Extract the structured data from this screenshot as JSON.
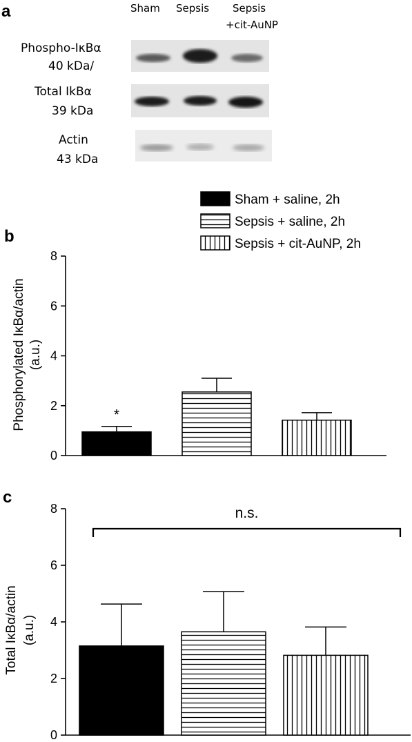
{
  "panel_labels": {
    "a": "a",
    "b": "b",
    "c": "c"
  },
  "blot": {
    "lanes": [
      "Sham",
      "Sepsis",
      "Sepsis",
      "+cit-AuNP"
    ],
    "rows": [
      {
        "label_line1": "Phospho-IκBα",
        "label_line2": "40 kDa/"
      },
      {
        "label_line1": "Total IkBα",
        "label_line2": "39 kDa"
      },
      {
        "label_line1": "Actin",
        "label_line2": "43 kDa"
      }
    ]
  },
  "legend": [
    {
      "label": "Sham + saline, 2h",
      "pattern": "solid"
    },
    {
      "label": "Sepsis + saline, 2h",
      "pattern": "horizontal"
    },
    {
      "label": "Sepsis + cit-AuNP, 2h",
      "pattern": "vertical"
    }
  ],
  "chart_data": [
    {
      "type": "bar",
      "categories": [
        "Sham + saline, 2h",
        "Sepsis + saline, 2h",
        "Sepsis + cit-AuNP, 2h"
      ],
      "values": [
        0.95,
        2.55,
        1.42
      ],
      "errors": [
        0.22,
        0.55,
        0.3
      ],
      "patterns": [
        "solid",
        "horizontal",
        "vertical"
      ],
      "ylabel_line1": "Phosphorylated IκBα/actin",
      "ylabel_line2": "(a.u.)",
      "ylim": [
        0,
        8
      ],
      "yticks": [
        "0",
        "2",
        "4",
        "6",
        "8"
      ],
      "annotations": [
        "*",
        "",
        ""
      ]
    },
    {
      "type": "bar",
      "categories": [
        "Sham + saline, 2h",
        "Sepsis + saline, 2h",
        "Sepsis + cit-AuNP, 2h"
      ],
      "values": [
        3.15,
        3.65,
        2.82
      ],
      "errors": [
        1.48,
        1.42,
        1.0
      ],
      "patterns": [
        "solid",
        "horizontal",
        "vertical"
      ],
      "ylabel_line1": "Total IκBα/actin",
      "ylabel_line2": "(a.u.)",
      "ylim": [
        0,
        8
      ],
      "yticks": [
        "0",
        "2",
        "4",
        "6",
        "8"
      ],
      "significance": "n.s."
    }
  ]
}
